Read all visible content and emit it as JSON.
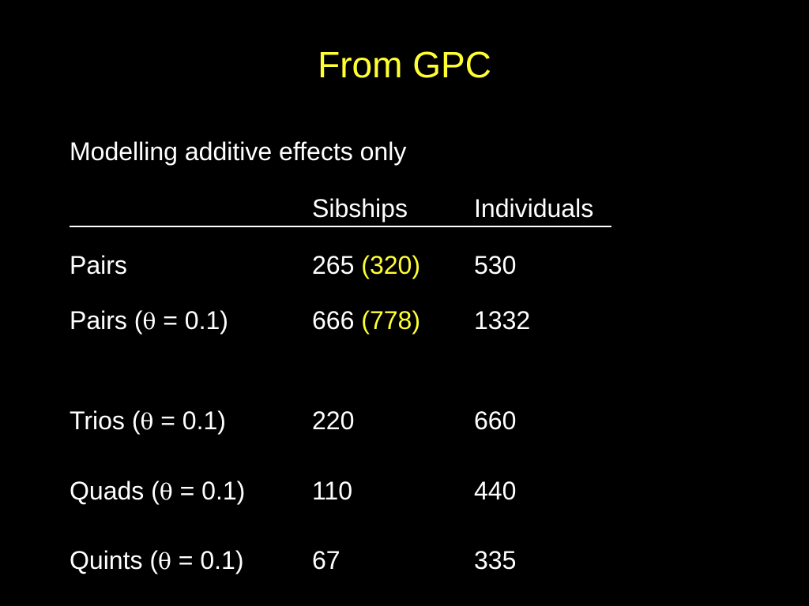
{
  "title": "From GPC",
  "subtitle": "Modelling additive effects only",
  "table": {
    "headers": {
      "label": "",
      "sibships": "Sibships",
      "individuals": "Individuals"
    },
    "rows": [
      {
        "name": "Pairs",
        "theta_note": "",
        "sibships": "265",
        "sibships_alt": "(320)",
        "individuals": "530"
      },
      {
        "name": "Pairs (",
        "theta_symbol": "θ",
        "theta_note": " = 0.1)",
        "sibships": "666",
        "sibships_alt": "(778)",
        "individuals": "1332"
      },
      {
        "name": "Trios (",
        "theta_symbol": "θ",
        "theta_note": " = 0.1)",
        "sibships": "220",
        "sibships_alt": "",
        "individuals": "660"
      },
      {
        "name": "Quads (",
        "theta_symbol": "θ",
        "theta_note": " = 0.1)",
        "sibships": "110",
        "sibships_alt": "",
        "individuals": "440"
      },
      {
        "name": "Quints (",
        "theta_symbol": "θ",
        "theta_note": " = 0.1)",
        "sibships": "67",
        "sibships_alt": "",
        "individuals": "335"
      }
    ]
  },
  "colors": {
    "background": "#000000",
    "title": "#ffff33",
    "text": "#ffffff",
    "highlight": "#ffff33"
  }
}
